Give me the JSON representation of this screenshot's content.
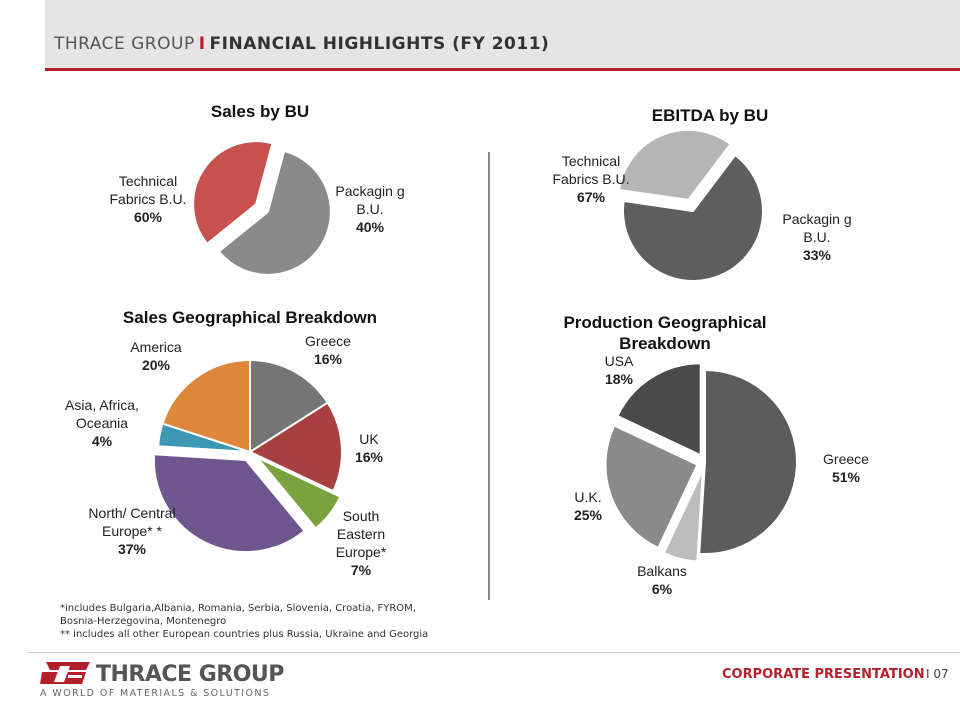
{
  "header": {
    "company": "THRACE GROUP",
    "separator": "I",
    "title": "FINANCIAL HIGHLIGHTS (FY 2011)"
  },
  "chart_data": [
    {
      "type": "pie",
      "title": "Sales by BU",
      "categories": [
        "Technical Fabrics B.U.",
        "Packaging B.U."
      ],
      "values": [
        60,
        40
      ],
      "labels": [
        "60%",
        "40%"
      ],
      "colors": [
        "#8a8a8a",
        "#c8504f"
      ]
    },
    {
      "type": "pie",
      "title": "EBITDA by BU",
      "categories": [
        "Technical Fabrics B.U.",
        "Packaging B.U."
      ],
      "values": [
        67,
        33
      ],
      "labels": [
        "67%",
        "33%"
      ],
      "colors": [
        "#5e5e5e",
        "#b5b5b5"
      ]
    },
    {
      "type": "pie",
      "title": "Sales Geographical Breakdown",
      "categories": [
        "Greece",
        "UK",
        "South Eastern Europe*",
        "North/ Central Europe**",
        "Asia, Africa, Oceania",
        "America"
      ],
      "values": [
        16,
        16,
        7,
        37,
        4,
        20
      ],
      "labels": [
        "16%",
        "16%",
        "7%",
        "37%",
        "4%",
        "20%"
      ],
      "colors": [
        "#757575",
        "#a8403f",
        "#7aa33f",
        "#6f568e",
        "#3e97b3",
        "#dd873b"
      ]
    },
    {
      "type": "pie",
      "title": "Production Geographical Breakdown",
      "categories": [
        "Greece",
        "Balkans",
        "U.K.",
        "USA"
      ],
      "values": [
        51,
        6,
        25,
        18
      ],
      "labels": [
        "51%",
        "6%",
        "25%",
        "18%"
      ],
      "colors": [
        "#5c5c5c",
        "#bdbdbd",
        "#8a8a8a",
        "#4a4a4a"
      ]
    }
  ],
  "labels": {
    "sales_tf": "Technical Fabrics B.U.",
    "sales_pk": "Packagin g B.U.",
    "ebitda_tf": "Technical Fabrics B.U.",
    "ebitda_pk": "Packagin g B.U.",
    "geo_america": "America",
    "geo_greece": "Greece",
    "geo_asia": "Asia, Africa, Oceania",
    "geo_uk": "UK",
    "geo_north": "North/ Central Europe* *",
    "geo_see": "South Eastern Europe*",
    "prod_title_1": "Production Geographical",
    "prod_title_2": "Breakdown",
    "prod_usa": "USA",
    "prod_greece": "Greece",
    "prod_uk": "U.K.",
    "prod_balkans": "Balkans"
  },
  "notes": {
    "note1": "*includes Bulgaria,Albania, Romania, Serbia, Slovenia, Croatia, FYROM,",
    "note2": "Bosnia-Herzegovina, Montenegro",
    "note3": "** includes all other European countries plus Russia, Ukraine and Georgia"
  },
  "footer": {
    "logo_name": "THRACE GROUP",
    "logo_tagline": "A WORLD OF MATERIALS & SOLUTIONS",
    "corporate": "CORPORATE PRESENTATION",
    "page": "I 07"
  }
}
